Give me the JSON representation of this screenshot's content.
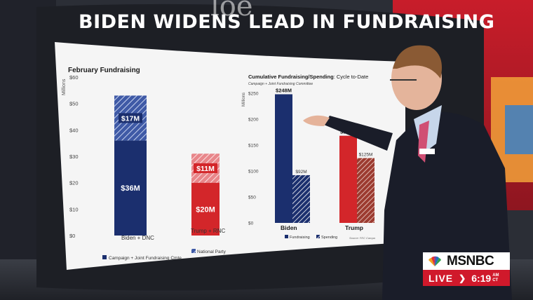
{
  "headline": "BIDEN WIDENS LEAD IN FUNDRAISING",
  "background_logo": "loe",
  "network": {
    "name": "MSNBC",
    "live_label": "LIVE",
    "time": "6:19",
    "am_pm": "AM",
    "timezone": "CT",
    "colors": {
      "red": "#d0192b"
    }
  },
  "chart_data": [
    {
      "type": "bar",
      "title": "February Fundraising",
      "ylabel": "Millions",
      "ylim": [
        0,
        60
      ],
      "yticks": [
        "$0",
        "$10",
        "$20",
        "$30",
        "$40",
        "$50",
        "$60"
      ],
      "categories": [
        "Biden + DNC",
        "Trump + RNC"
      ],
      "stacked": true,
      "series": [
        {
          "name": "Campaign + Joint Fundraising Cmte.",
          "values": [
            36,
            20
          ],
          "labels": [
            "$36M",
            "$20M"
          ]
        },
        {
          "name": "National Party",
          "values": [
            17,
            11
          ],
          "labels": [
            "$17M",
            "$11M"
          ]
        }
      ],
      "colors": {
        "biden": "#1b2f6e",
        "trump": "#d3262a"
      },
      "legend_position": "bottom"
    },
    {
      "type": "bar",
      "title": "Cumulative Fundraising/Spending",
      "title_suffix": ": Cycle to-Date",
      "subtitle": "Campaign + Joint Fundraising Committee",
      "ylabel": "Millions",
      "ylim": [
        0,
        250
      ],
      "yticks": [
        "$0",
        "$50",
        "$100",
        "$150",
        "$200",
        "$250"
      ],
      "categories": [
        "Biden",
        "Trump"
      ],
      "series": [
        {
          "name": "Fundraising",
          "values": [
            248,
            168
          ],
          "labels": [
            "$248M",
            "$168M"
          ]
        },
        {
          "name": "Spending",
          "values": [
            92,
            125
          ],
          "labels": [
            "$92M",
            "$125M"
          ]
        }
      ],
      "colors": {
        "biden": "#1b2f6e",
        "trump": "#d3262a"
      },
      "source": "Source: FEC Campa",
      "legend_position": "bottom"
    }
  ]
}
